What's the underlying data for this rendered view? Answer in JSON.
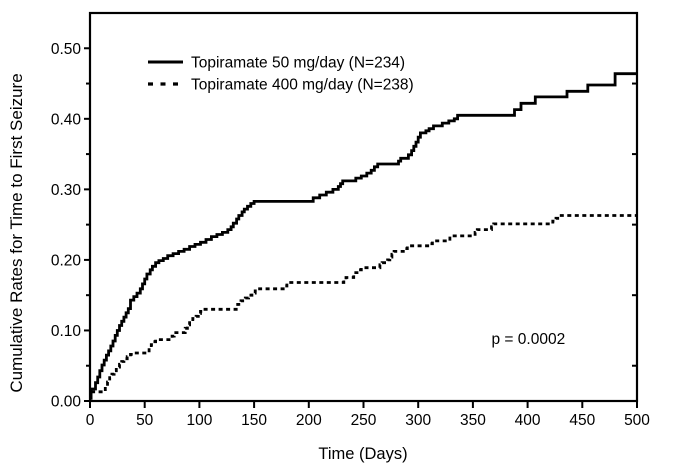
{
  "figure": {
    "background": "#ffffff",
    "ink_color": "#000000"
  },
  "chart_data": {
    "type": "line",
    "subtype": "step-post",
    "title": "",
    "xlabel": "Time (Days)",
    "ylabel": "Cumulative Rates for Time to First Seizure",
    "xlim": [
      0,
      500
    ],
    "ylim": [
      0,
      0.55
    ],
    "grid": false,
    "x_ticks": [
      0,
      50,
      100,
      150,
      200,
      250,
      300,
      350,
      400,
      450,
      500
    ],
    "x_tick_labels": [
      "0",
      "50",
      "100",
      "150",
      "200",
      "250",
      "300",
      "350",
      "400",
      "450",
      "500"
    ],
    "y_ticks_major": [
      0.0,
      0.1,
      0.2,
      0.3,
      0.4,
      0.5
    ],
    "y_tick_labels": [
      "0.00",
      "0.10",
      "0.20",
      "0.30",
      "0.40",
      "0.50"
    ],
    "y_ticks_minor_left": [
      0.05,
      0.15,
      0.25,
      0.35,
      0.45
    ],
    "y_ticks_right": [
      0.05,
      0.15,
      0.25,
      0.35,
      0.45
    ],
    "legend": {
      "position": "top-left-inside",
      "entries": [
        {
          "label": "Topiramate 50 mg/day (N=234)",
          "style": "solid",
          "color": "#000000"
        },
        {
          "label": "Topiramate 400 mg/day (N=238)",
          "style": "dashed",
          "color": "#000000"
        }
      ]
    },
    "annotation": {
      "text": "p = 0.0002",
      "x": 367,
      "y": 0.081
    },
    "series": [
      {
        "name": "Topiramate 50 mg/day (N=234)",
        "style": "solid",
        "color": "#000000",
        "points": [
          [
            0,
            0.004
          ],
          [
            1,
            0.017
          ],
          [
            5,
            0.026
          ],
          [
            7,
            0.034
          ],
          [
            9,
            0.043
          ],
          [
            11,
            0.051
          ],
          [
            13,
            0.058
          ],
          [
            15,
            0.065
          ],
          [
            17,
            0.071
          ],
          [
            19,
            0.078
          ],
          [
            21,
            0.085
          ],
          [
            23,
            0.093
          ],
          [
            25,
            0.1
          ],
          [
            27,
            0.107
          ],
          [
            29,
            0.113
          ],
          [
            31,
            0.119
          ],
          [
            33,
            0.125
          ],
          [
            35,
            0.131
          ],
          [
            37,
            0.143
          ],
          [
            40,
            0.148
          ],
          [
            43,
            0.153
          ],
          [
            46,
            0.159
          ],
          [
            48,
            0.166
          ],
          [
            50,
            0.173
          ],
          [
            52,
            0.18
          ],
          [
            55,
            0.186
          ],
          [
            57,
            0.191
          ],
          [
            60,
            0.196
          ],
          [
            63,
            0.199
          ],
          [
            67,
            0.202
          ],
          [
            71,
            0.206
          ],
          [
            76,
            0.209
          ],
          [
            81,
            0.212
          ],
          [
            86,
            0.215
          ],
          [
            91,
            0.219
          ],
          [
            96,
            0.222
          ],
          [
            101,
            0.225
          ],
          [
            106,
            0.229
          ],
          [
            111,
            0.233
          ],
          [
            116,
            0.236
          ],
          [
            121,
            0.239
          ],
          [
            126,
            0.243
          ],
          [
            129,
            0.247
          ],
          [
            131,
            0.252
          ],
          [
            134,
            0.258
          ],
          [
            136,
            0.263
          ],
          [
            139,
            0.268
          ],
          [
            141,
            0.272
          ],
          [
            144,
            0.276
          ],
          [
            147,
            0.28
          ],
          [
            150,
            0.283
          ],
          [
            204,
            0.288
          ],
          [
            210,
            0.292
          ],
          [
            216,
            0.296
          ],
          [
            222,
            0.3
          ],
          [
            227,
            0.304
          ],
          [
            229,
            0.308
          ],
          [
            231,
            0.312
          ],
          [
            243,
            0.316
          ],
          [
            248,
            0.319
          ],
          [
            253,
            0.323
          ],
          [
            257,
            0.327
          ],
          [
            260,
            0.332
          ],
          [
            263,
            0.336
          ],
          [
            282,
            0.34
          ],
          [
            284,
            0.344
          ],
          [
            291,
            0.349
          ],
          [
            294,
            0.355
          ],
          [
            296,
            0.361
          ],
          [
            298,
            0.367
          ],
          [
            300,
            0.374
          ],
          [
            302,
            0.38
          ],
          [
            307,
            0.383
          ],
          [
            310,
            0.386
          ],
          [
            314,
            0.39
          ],
          [
            322,
            0.394
          ],
          [
            328,
            0.397
          ],
          [
            333,
            0.4
          ],
          [
            336,
            0.405
          ],
          [
            388,
            0.413
          ],
          [
            394,
            0.422
          ],
          [
            407,
            0.431
          ],
          [
            436,
            0.439
          ],
          [
            455,
            0.448
          ],
          [
            480,
            0.464
          ],
          [
            500,
            0.464
          ]
        ]
      },
      {
        "name": "Topiramate 400 mg/day (N=238)",
        "style": "dashed",
        "color": "#000000",
        "points": [
          [
            0,
            0.004
          ],
          [
            1,
            0.013
          ],
          [
            14,
            0.021
          ],
          [
            16,
            0.027
          ],
          [
            18,
            0.033
          ],
          [
            20,
            0.038
          ],
          [
            22,
            0.043
          ],
          [
            24,
            0.048
          ],
          [
            27,
            0.052
          ],
          [
            29,
            0.056
          ],
          [
            31,
            0.06
          ],
          [
            34,
            0.063
          ],
          [
            37,
            0.066
          ],
          [
            39,
            0.068
          ],
          [
            54,
            0.075
          ],
          [
            56,
            0.08
          ],
          [
            58,
            0.084
          ],
          [
            60,
            0.087
          ],
          [
            75,
            0.092
          ],
          [
            77,
            0.097
          ],
          [
            87,
            0.103
          ],
          [
            89,
            0.108
          ],
          [
            91,
            0.113
          ],
          [
            94,
            0.117
          ],
          [
            97,
            0.12
          ],
          [
            99,
            0.124
          ],
          [
            101,
            0.127
          ],
          [
            103,
            0.13
          ],
          [
            135,
            0.137
          ],
          [
            138,
            0.142
          ],
          [
            142,
            0.146
          ],
          [
            145,
            0.15
          ],
          [
            148,
            0.153
          ],
          [
            151,
            0.156
          ],
          [
            155,
            0.159
          ],
          [
            178,
            0.163
          ],
          [
            180,
            0.168
          ],
          [
            232,
            0.172
          ],
          [
            234,
            0.175
          ],
          [
            241,
            0.179
          ],
          [
            243,
            0.182
          ],
          [
            246,
            0.186
          ],
          [
            248,
            0.189
          ],
          [
            265,
            0.193
          ],
          [
            267,
            0.196
          ],
          [
            272,
            0.2
          ],
          [
            274,
            0.204
          ],
          [
            276,
            0.208
          ],
          [
            278,
            0.212
          ],
          [
            288,
            0.216
          ],
          [
            290,
            0.22
          ],
          [
            311,
            0.223
          ],
          [
            313,
            0.227
          ],
          [
            329,
            0.231
          ],
          [
            331,
            0.234
          ],
          [
            352,
            0.239
          ],
          [
            354,
            0.243
          ],
          [
            367,
            0.247
          ],
          [
            369,
            0.251
          ],
          [
            423,
            0.255
          ],
          [
            426,
            0.259
          ],
          [
            429,
            0.263
          ],
          [
            500,
            0.263
          ]
        ]
      }
    ]
  }
}
